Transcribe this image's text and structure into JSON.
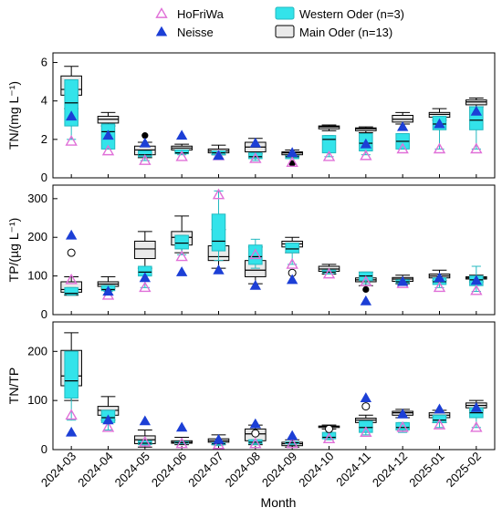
{
  "chart_data": {
    "type": "boxplot",
    "xlabel": "Month",
    "categories": [
      "2024-03",
      "2024-04",
      "2024-05",
      "2024-06",
      "2024-07",
      "2024-08",
      "2024-09",
      "2024-10",
      "2024-11",
      "2024-12",
      "2025-01",
      "2025-02"
    ],
    "legend": {
      "items": [
        {
          "name": "HoFriWa",
          "marker": "open-triangle",
          "color": "#e070d8"
        },
        {
          "name": "Neisse",
          "marker": "filled-triangle",
          "color": "#1c3fd6"
        },
        {
          "name": "Western Oder (n=3)",
          "marker": "box",
          "color": "#33e3ea"
        },
        {
          "name": "Main Oder (n=13)",
          "marker": "box",
          "color": "#eaeaea"
        }
      ]
    },
    "panels": [
      {
        "ylabel": "TN/(mg L⁻¹)",
        "ylim": [
          0,
          6.5
        ],
        "yticks": [
          0,
          2,
          4,
          6
        ],
        "main_oder": [
          {
            "whislo": 3.6,
            "q1": 4.3,
            "med": 4.6,
            "q3": 5.3,
            "whishi": 5.8
          },
          {
            "whislo": 2.7,
            "q1": 2.85,
            "med": 3.05,
            "q3": 3.2,
            "whishi": 3.4
          },
          {
            "whislo": 1.05,
            "q1": 1.2,
            "med": 1.45,
            "q3": 1.65,
            "whishi": 1.85
          },
          {
            "whislo": 1.35,
            "q1": 1.45,
            "med": 1.55,
            "q3": 1.65,
            "whishi": 1.75
          },
          {
            "whislo": 1.2,
            "q1": 1.3,
            "med": 1.4,
            "q3": 1.5,
            "whishi": 1.7
          },
          {
            "whislo": 1.25,
            "q1": 1.35,
            "med": 1.6,
            "q3": 1.85,
            "whishi": 2.05
          },
          {
            "whislo": 1.15,
            "q1": 1.2,
            "med": 1.3,
            "q3": 1.35,
            "whishi": 1.45
          },
          {
            "whislo": 2.45,
            "q1": 2.55,
            "med": 2.65,
            "q3": 2.7,
            "whishi": 2.75
          },
          {
            "whislo": 2.35,
            "q1": 2.45,
            "med": 2.55,
            "q3": 2.6,
            "whishi": 2.65
          },
          {
            "whislo": 2.8,
            "q1": 2.9,
            "med": 3.05,
            "q3": 3.25,
            "whishi": 3.4
          },
          {
            "whislo": 3.0,
            "q1": 3.15,
            "med": 3.3,
            "q3": 3.4,
            "whishi": 3.6
          },
          {
            "whislo": 3.7,
            "q1": 3.8,
            "med": 3.95,
            "q3": 4.05,
            "whishi": 4.15
          }
        ],
        "western_oder": [
          {
            "whislo": 2.0,
            "q1": 2.7,
            "med": 3.9,
            "q3": 5.1,
            "whishi": 5.1
          },
          {
            "whislo": 1.5,
            "q1": 1.5,
            "med": 2.4,
            "q3": 2.8,
            "whishi": 2.8
          },
          {
            "whislo": 0.9,
            "q1": 1.1,
            "med": 1.2,
            "q3": 1.4,
            "whishi": 1.4
          },
          {
            "whislo": 1.2,
            "q1": 1.25,
            "med": 1.3,
            "q3": 1.45,
            "whishi": 1.45
          },
          {
            "whislo": 1.2,
            "q1": 1.2,
            "med": 1.3,
            "q3": 1.4,
            "whishi": 1.4
          },
          {
            "whislo": 0.9,
            "q1": 1.0,
            "med": 1.1,
            "q3": 1.3,
            "whishi": 1.3
          },
          {
            "whislo": 1.0,
            "q1": 1.0,
            "med": 1.1,
            "q3": 1.15,
            "whishi": 1.15
          },
          {
            "whislo": 1.1,
            "q1": 1.3,
            "med": 2.0,
            "q3": 2.2,
            "whishi": 2.2
          },
          {
            "whislo": 1.2,
            "q1": 1.4,
            "med": 1.8,
            "q3": 2.3,
            "whishi": 2.3
          },
          {
            "whislo": 1.5,
            "q1": 1.5,
            "med": 1.9,
            "q3": 2.3,
            "whishi": 2.3
          },
          {
            "whislo": 1.5,
            "q1": 2.5,
            "med": 2.8,
            "q3": 3.2,
            "whishi": 3.2
          },
          {
            "whislo": 1.5,
            "q1": 2.5,
            "med": 3.0,
            "q3": 3.7,
            "whishi": 3.7
          }
        ],
        "hofriwa": [
          1.9,
          1.4,
          0.9,
          1.1,
          1.15,
          1.0,
          0.8,
          1.1,
          1.15,
          1.5,
          1.5,
          1.5
        ],
        "neisse": [
          3.2,
          2.2,
          1.8,
          2.2,
          1.15,
          1.8,
          1.3,
          null,
          1.75,
          2.65,
          2.8,
          3.45
        ],
        "outliers_filled": [
          {
            "i": 2,
            "y": 2.2
          },
          {
            "i": 6,
            "y": 0.75
          }
        ],
        "outliers_open": []
      },
      {
        "ylabel": "TP/(µg L⁻¹)",
        "ylim": [
          0,
          335
        ],
        "yticks": [
          0,
          100,
          200,
          300
        ],
        "main_oder": [
          {
            "whislo": 50,
            "q1": 58,
            "med": 65,
            "q3": 85,
            "whishi": 98
          },
          {
            "whislo": 68,
            "q1": 73,
            "med": 79,
            "q3": 85,
            "whishi": 98
          },
          {
            "whislo": 120,
            "q1": 145,
            "med": 170,
            "q3": 190,
            "whishi": 215
          },
          {
            "whislo": 160,
            "q1": 180,
            "med": 200,
            "q3": 215,
            "whishi": 255
          },
          {
            "whislo": 120,
            "q1": 140,
            "med": 150,
            "q3": 178,
            "whishi": 220
          },
          {
            "whislo": 80,
            "q1": 98,
            "med": 115,
            "q3": 140,
            "whishi": 175
          },
          {
            "whislo": 160,
            "q1": 175,
            "med": 183,
            "q3": 190,
            "whishi": 200
          },
          {
            "whislo": 105,
            "q1": 112,
            "med": 118,
            "q3": 125,
            "whishi": 130
          },
          {
            "whislo": 75,
            "q1": 85,
            "med": 90,
            "q3": 95,
            "whishi": 110
          },
          {
            "whislo": 80,
            "q1": 86,
            "med": 92,
            "q3": 96,
            "whishi": 102
          },
          {
            "whislo": 88,
            "q1": 95,
            "med": 100,
            "q3": 105,
            "whishi": 115
          },
          {
            "whislo": 85,
            "q1": 92,
            "med": 95,
            "q3": 98,
            "whishi": 102
          }
        ],
        "western_oder": [
          {
            "whislo": 50,
            "q1": 52,
            "med": 55,
            "q3": 70,
            "whishi": 70
          },
          {
            "whislo": 60,
            "q1": 62,
            "med": 65,
            "q3": 75,
            "whishi": 75
          },
          {
            "whislo": 70,
            "q1": 100,
            "med": 110,
            "q3": 125,
            "whishi": 125
          },
          {
            "whislo": 155,
            "q1": 170,
            "med": 185,
            "q3": 205,
            "whishi": 205
          },
          {
            "whislo": 140,
            "q1": 165,
            "med": 190,
            "q3": 260,
            "whishi": 320
          },
          {
            "whislo": 120,
            "q1": 130,
            "med": 150,
            "q3": 180,
            "whishi": 195
          },
          {
            "whislo": 130,
            "q1": 160,
            "med": 170,
            "q3": 185,
            "whishi": 185
          },
          {
            "whislo": 105,
            "q1": 108,
            "med": 110,
            "q3": 115,
            "whishi": 115
          },
          {
            "whislo": 80,
            "q1": 88,
            "med": 100,
            "q3": 110,
            "whishi": 110
          },
          {
            "whislo": 80,
            "q1": 82,
            "med": 85,
            "q3": 90,
            "whishi": 90
          },
          {
            "whislo": 70,
            "q1": 78,
            "med": 85,
            "q3": 95,
            "whishi": 95
          },
          {
            "whislo": 60,
            "q1": 75,
            "med": 90,
            "q3": 100,
            "whishi": 125
          }
        ],
        "hofriwa": [
          90,
          50,
          70,
          150,
          310,
          155,
          130,
          105,
          85,
          80,
          70,
          62
        ],
        "neisse": [
          205,
          60,
          95,
          110,
          115,
          75,
          90,
          null,
          35,
          85,
          95,
          88
        ],
        "outliers_filled": [
          {
            "i": 1,
            "y": 60
          },
          {
            "i": 8,
            "y": 65
          }
        ],
        "outliers_open": [
          {
            "i": 0,
            "y": 160
          },
          {
            "i": 6,
            "y": 108
          }
        ]
      },
      {
        "ylabel": "TN/TP",
        "ylim": [
          0,
          260
        ],
        "yticks": [
          0,
          100,
          200
        ],
        "main_oder": [
          {
            "whislo": 100,
            "q1": 130,
            "med": 150,
            "q3": 202,
            "whishi": 238
          },
          {
            "whislo": 60,
            "q1": 70,
            "med": 80,
            "q3": 88,
            "whishi": 108
          },
          {
            "whislo": 5,
            "q1": 12,
            "med": 20,
            "q3": 28,
            "whishi": 40
          },
          {
            "whislo": 10,
            "q1": 13,
            "med": 15,
            "q3": 18,
            "whishi": 25
          },
          {
            "whislo": 10,
            "q1": 15,
            "med": 18,
            "q3": 22,
            "whishi": 30
          },
          {
            "whislo": 10,
            "q1": 18,
            "med": 32,
            "q3": 42,
            "whishi": 50
          },
          {
            "whislo": 5,
            "q1": 8,
            "med": 12,
            "q3": 15,
            "whishi": 20
          },
          {
            "whislo": 42,
            "q1": 45,
            "med": 47,
            "q3": 48,
            "whishi": 50
          },
          {
            "whislo": 45,
            "q1": 55,
            "med": 60,
            "q3": 64,
            "whishi": 70
          },
          {
            "whislo": 65,
            "q1": 70,
            "med": 75,
            "q3": 78,
            "whishi": 82
          },
          {
            "whislo": 55,
            "q1": 65,
            "med": 70,
            "q3": 75,
            "whishi": 80
          },
          {
            "whislo": 80,
            "q1": 85,
            "med": 90,
            "q3": 95,
            "whishi": 100
          }
        ],
        "western_oder": [
          {
            "whislo": 60,
            "q1": 105,
            "med": 140,
            "q3": 200,
            "whishi": 200
          },
          {
            "whislo": 40,
            "q1": 55,
            "med": 65,
            "q3": 80,
            "whishi": 80
          },
          {
            "whislo": 8,
            "q1": 10,
            "med": 13,
            "q3": 18,
            "whishi": 18
          },
          {
            "whislo": 12,
            "q1": 13,
            "med": 14,
            "q3": 16,
            "whishi": 16
          },
          {
            "whislo": 8,
            "q1": 10,
            "med": 12,
            "q3": 14,
            "whishi": 14
          },
          {
            "whislo": 10,
            "q1": 12,
            "med": 15,
            "q3": 20,
            "whishi": 20
          },
          {
            "whislo": 10,
            "q1": 12,
            "med": 14,
            "q3": 16,
            "whishi": 16
          },
          {
            "whislo": 20,
            "q1": 22,
            "med": 25,
            "q3": 35,
            "whishi": 35
          },
          {
            "whislo": 30,
            "q1": 35,
            "med": 45,
            "q3": 58,
            "whishi": 58
          },
          {
            "whislo": 35,
            "q1": 40,
            "med": 45,
            "q3": 55,
            "whishi": 55
          },
          {
            "whislo": 45,
            "q1": 55,
            "med": 60,
            "q3": 70,
            "whishi": 70
          },
          {
            "whislo": 45,
            "q1": 65,
            "med": 75,
            "q3": 85,
            "whishi": 85
          }
        ],
        "hofriwa": [
          70,
          45,
          15,
          12,
          10,
          12,
          12,
          22,
          35,
          45,
          50,
          45
        ],
        "neisse": [
          35,
          60,
          58,
          45,
          20,
          52,
          28,
          null,
          105,
          72,
          82,
          85
        ],
        "outliers_filled": [],
        "outliers_open": [
          {
            "i": 5,
            "y": 33
          },
          {
            "i": 7,
            "y": 42
          },
          {
            "i": 8,
            "y": 88
          }
        ]
      }
    ]
  }
}
